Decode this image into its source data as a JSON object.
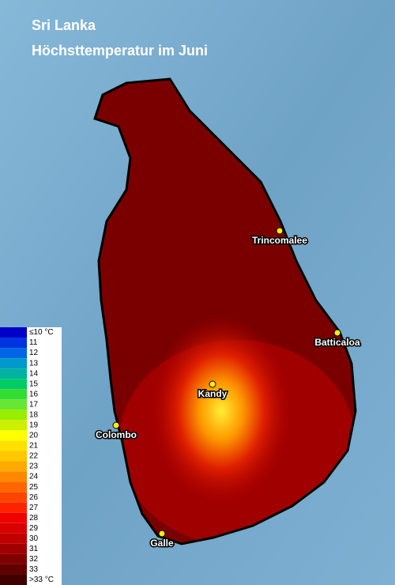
{
  "header": {
    "title": "Sri Lanka",
    "subtitle": "Höchsttemperatur im Juni"
  },
  "cities": [
    {
      "label": "Trincomalee"
    },
    {
      "label": "Batticaloa"
    },
    {
      "label": "Kandy"
    },
    {
      "label": "Colombo"
    },
    {
      "label": "Galle"
    }
  ],
  "legend": [
    {
      "label": "≤10 °C",
      "color": "#0000c8"
    },
    {
      "label": "11",
      "color": "#0033e0"
    },
    {
      "label": "12",
      "color": "#0066e6"
    },
    {
      "label": "13",
      "color": "#0099cc"
    },
    {
      "label": "14",
      "color": "#00b3a0"
    },
    {
      "label": "15",
      "color": "#00cc66"
    },
    {
      "label": "16",
      "color": "#33dd33"
    },
    {
      "label": "17",
      "color": "#66e633"
    },
    {
      "label": "18",
      "color": "#99ee00"
    },
    {
      "label": "19",
      "color": "#ccf000"
    },
    {
      "label": "20",
      "color": "#ffff00"
    },
    {
      "label": "21",
      "color": "#ffe000"
    },
    {
      "label": "22",
      "color": "#ffc800"
    },
    {
      "label": "23",
      "color": "#ffaa00"
    },
    {
      "label": "24",
      "color": "#ff8800"
    },
    {
      "label": "25",
      "color": "#ff6600"
    },
    {
      "label": "26",
      "color": "#ff4400"
    },
    {
      "label": "27",
      "color": "#ff2200"
    },
    {
      "label": "28",
      "color": "#f00000"
    },
    {
      "label": "29",
      "color": "#d80000"
    },
    {
      "label": "30",
      "color": "#c00000"
    },
    {
      "label": "31",
      "color": "#a00000"
    },
    {
      "label": "32",
      "color": "#800000"
    },
    {
      "label": "33",
      "color": "#600000"
    },
    {
      "label": ">33 °C",
      "color": "#400000"
    }
  ]
}
